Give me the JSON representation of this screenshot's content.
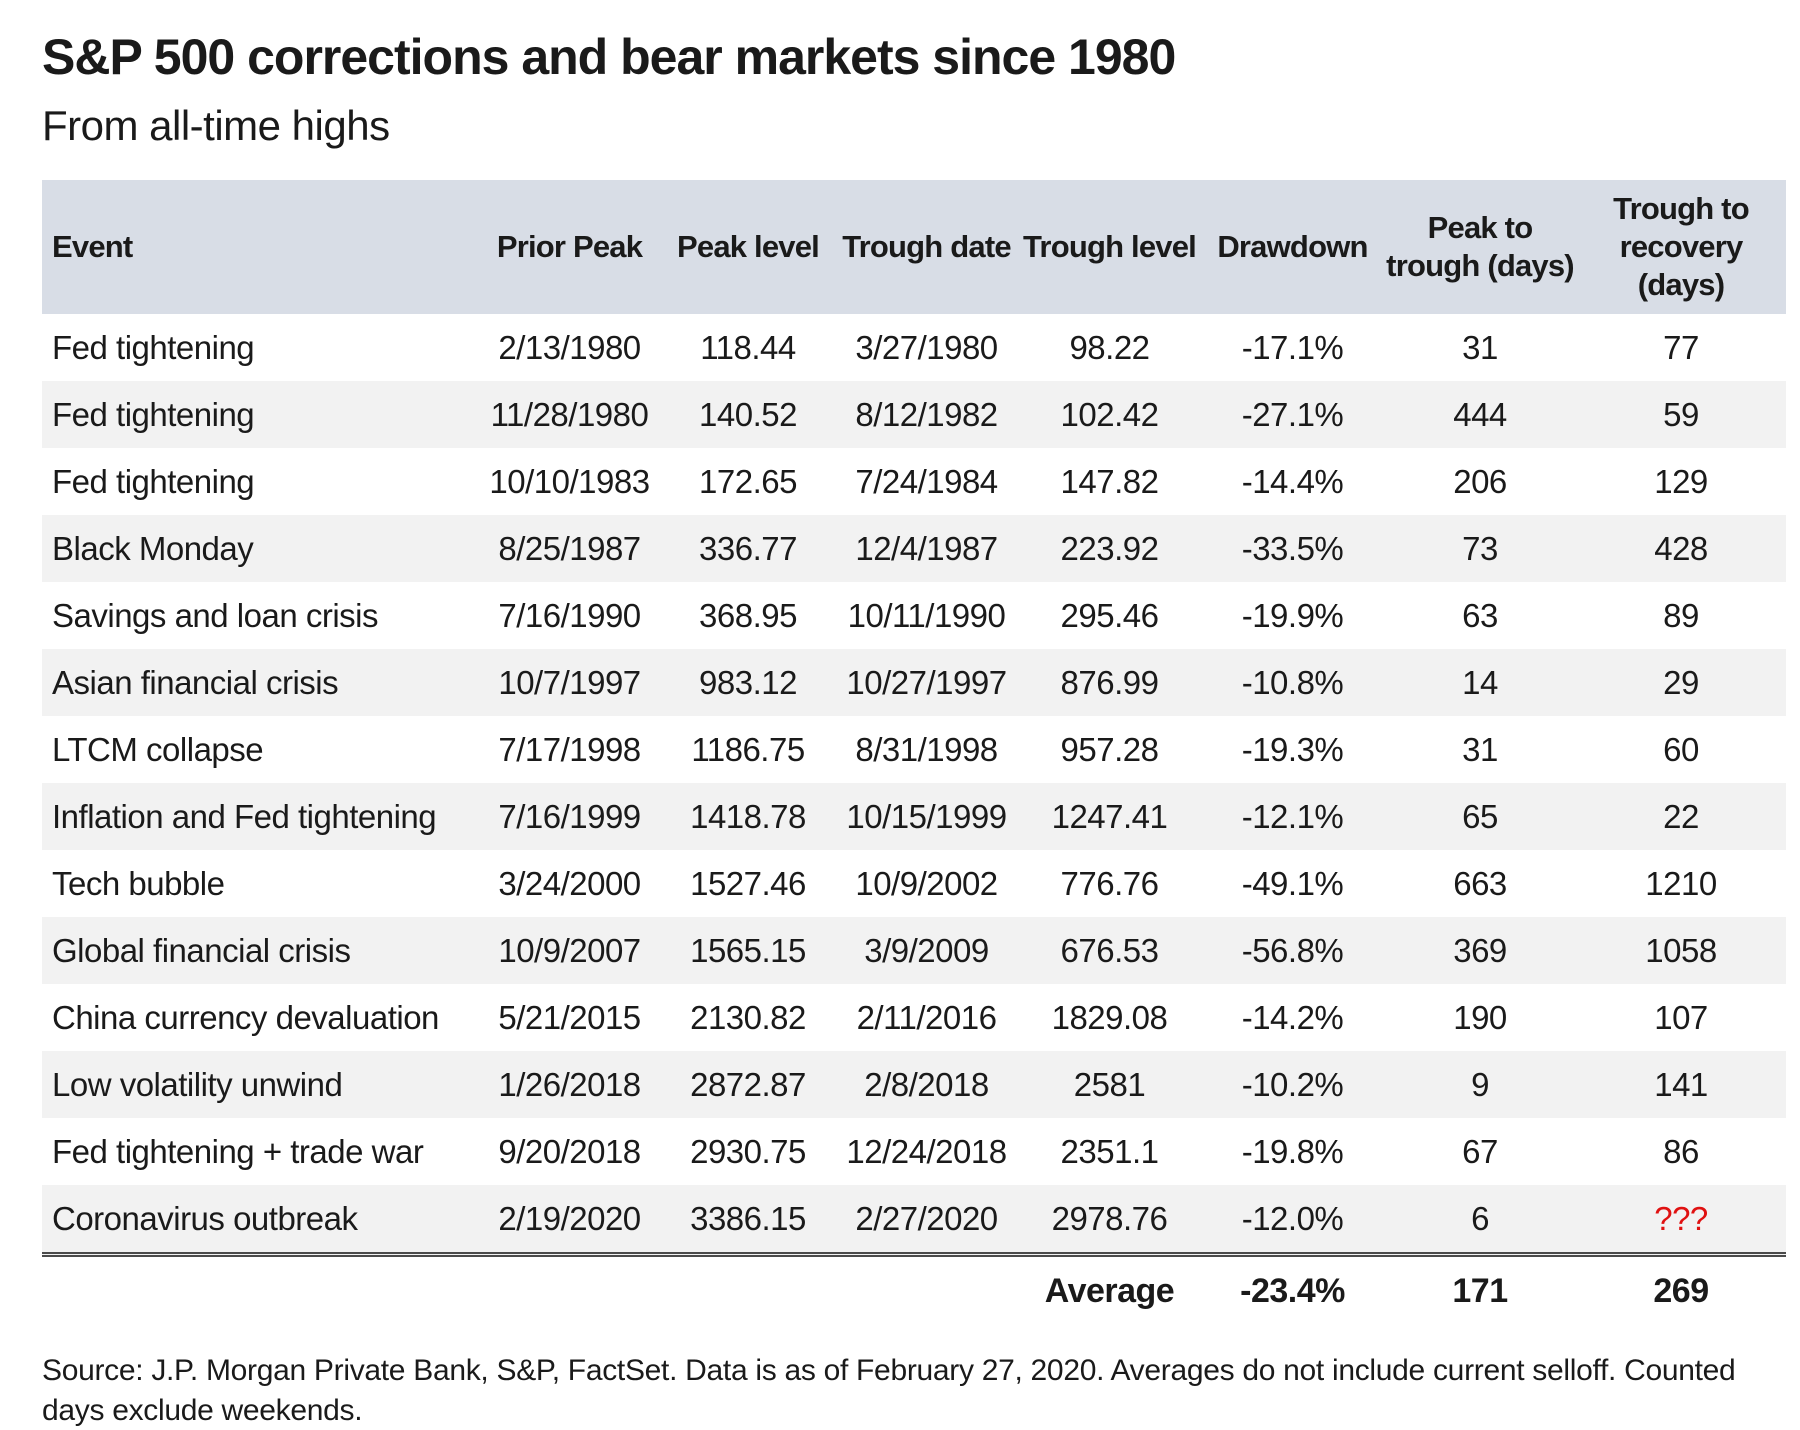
{
  "header": {
    "title": "S&P 500 corrections and bear markets since 1980",
    "subtitle": "From all-time highs"
  },
  "table": {
    "columns": [
      "Event",
      "Prior Peak",
      "Peak level",
      "Trough date",
      "Trough level",
      "Drawdown",
      "Peak to trough (days)",
      "Trough to recovery (days)"
    ],
    "rows": [
      [
        "Fed tightening",
        "2/13/1980",
        "118.44",
        "3/27/1980",
        "98.22",
        "-17.1%",
        "31",
        "77"
      ],
      [
        "Fed tightening",
        "11/28/1980",
        "140.52",
        "8/12/1982",
        "102.42",
        "-27.1%",
        "444",
        "59"
      ],
      [
        "Fed tightening",
        "10/10/1983",
        "172.65",
        "7/24/1984",
        "147.82",
        "-14.4%",
        "206",
        "129"
      ],
      [
        "Black Monday",
        "8/25/1987",
        "336.77",
        "12/4/1987",
        "223.92",
        "-33.5%",
        "73",
        "428"
      ],
      [
        "Savings and loan crisis",
        "7/16/1990",
        "368.95",
        "10/11/1990",
        "295.46",
        "-19.9%",
        "63",
        "89"
      ],
      [
        "Asian financial crisis",
        "10/7/1997",
        "983.12",
        "10/27/1997",
        "876.99",
        "-10.8%",
        "14",
        "29"
      ],
      [
        "LTCM collapse",
        "7/17/1998",
        "1186.75",
        "8/31/1998",
        "957.28",
        "-19.3%",
        "31",
        "60"
      ],
      [
        "Inflation and Fed tightening",
        "7/16/1999",
        "1418.78",
        "10/15/1999",
        "1247.41",
        "-12.1%",
        "65",
        "22"
      ],
      [
        "Tech bubble",
        "3/24/2000",
        "1527.46",
        "10/9/2002",
        "776.76",
        "-49.1%",
        "663",
        "1210"
      ],
      [
        "Global financial crisis",
        "10/9/2007",
        "1565.15",
        "3/9/2009",
        "676.53",
        "-56.8%",
        "369",
        "1058"
      ],
      [
        "China currency devaluation",
        "5/21/2015",
        "2130.82",
        "2/11/2016",
        "1829.08",
        "-14.2%",
        "190",
        "107"
      ],
      [
        "Low volatility unwind",
        "1/26/2018",
        "2872.87",
        "2/8/2018",
        "2581",
        "-10.2%",
        "9",
        "141"
      ],
      [
        "Fed tightening + trade war",
        "9/20/2018",
        "2930.75",
        "12/24/2018",
        "2351.1",
        "-19.8%",
        "67",
        "86"
      ],
      [
        "Coronavirus outbreak",
        "2/19/2020",
        "3386.15",
        "2/27/2020",
        "2978.76",
        "-12.0%",
        "6",
        "???"
      ]
    ],
    "average_row": [
      "",
      "",
      "",
      "",
      "Average",
      "-23.4%",
      "171",
      "269"
    ],
    "pending_marker": "???"
  },
  "footer": {
    "source": "Source: J.P. Morgan Private Bank, S&P, FactSet. Data is as of February 27, 2020. Averages do not include current selloff. Counted days exclude weekends."
  },
  "colors": {
    "header_bg": "#d8dde6",
    "stripe": "#f2f2f2",
    "pending_red": "#e01111",
    "rule": "#4a4a4a",
    "text": "#1a1a1a"
  },
  "chart_data": {
    "type": "table",
    "title": "S&P 500 corrections and bear markets since 1980",
    "subtitle": "From all-time highs",
    "columns": [
      "Event",
      "Prior Peak",
      "Peak level",
      "Trough date",
      "Trough level",
      "Drawdown",
      "Peak to trough (days)",
      "Trough to recovery (days)"
    ],
    "rows": [
      {
        "event": "Fed tightening",
        "prior_peak": "2/13/1980",
        "peak_level": 118.44,
        "trough_date": "3/27/1980",
        "trough_level": 98.22,
        "drawdown_pct": -17.1,
        "peak_to_trough_days": 31,
        "trough_to_recovery_days": 77
      },
      {
        "event": "Fed tightening",
        "prior_peak": "11/28/1980",
        "peak_level": 140.52,
        "trough_date": "8/12/1982",
        "trough_level": 102.42,
        "drawdown_pct": -27.1,
        "peak_to_trough_days": 444,
        "trough_to_recovery_days": 59
      },
      {
        "event": "Fed tightening",
        "prior_peak": "10/10/1983",
        "peak_level": 172.65,
        "trough_date": "7/24/1984",
        "trough_level": 147.82,
        "drawdown_pct": -14.4,
        "peak_to_trough_days": 206,
        "trough_to_recovery_days": 129
      },
      {
        "event": "Black Monday",
        "prior_peak": "8/25/1987",
        "peak_level": 336.77,
        "trough_date": "12/4/1987",
        "trough_level": 223.92,
        "drawdown_pct": -33.5,
        "peak_to_trough_days": 73,
        "trough_to_recovery_days": 428
      },
      {
        "event": "Savings and loan crisis",
        "prior_peak": "7/16/1990",
        "peak_level": 368.95,
        "trough_date": "10/11/1990",
        "trough_level": 295.46,
        "drawdown_pct": -19.9,
        "peak_to_trough_days": 63,
        "trough_to_recovery_days": 89
      },
      {
        "event": "Asian financial crisis",
        "prior_peak": "10/7/1997",
        "peak_level": 983.12,
        "trough_date": "10/27/1997",
        "trough_level": 876.99,
        "drawdown_pct": -10.8,
        "peak_to_trough_days": 14,
        "trough_to_recovery_days": 29
      },
      {
        "event": "LTCM collapse",
        "prior_peak": "7/17/1998",
        "peak_level": 1186.75,
        "trough_date": "8/31/1998",
        "trough_level": 957.28,
        "drawdown_pct": -19.3,
        "peak_to_trough_days": 31,
        "trough_to_recovery_days": 60
      },
      {
        "event": "Inflation and Fed tightening",
        "prior_peak": "7/16/1999",
        "peak_level": 1418.78,
        "trough_date": "10/15/1999",
        "trough_level": 1247.41,
        "drawdown_pct": -12.1,
        "peak_to_trough_days": 65,
        "trough_to_recovery_days": 22
      },
      {
        "event": "Tech bubble",
        "prior_peak": "3/24/2000",
        "peak_level": 1527.46,
        "trough_date": "10/9/2002",
        "trough_level": 776.76,
        "drawdown_pct": -49.1,
        "peak_to_trough_days": 663,
        "trough_to_recovery_days": 1210
      },
      {
        "event": "Global financial crisis",
        "prior_peak": "10/9/2007",
        "peak_level": 1565.15,
        "trough_date": "3/9/2009",
        "trough_level": 676.53,
        "drawdown_pct": -56.8,
        "peak_to_trough_days": 369,
        "trough_to_recovery_days": 1058
      },
      {
        "event": "China currency devaluation",
        "prior_peak": "5/21/2015",
        "peak_level": 2130.82,
        "trough_date": "2/11/2016",
        "trough_level": 1829.08,
        "drawdown_pct": -14.2,
        "peak_to_trough_days": 190,
        "trough_to_recovery_days": 107
      },
      {
        "event": "Low volatility unwind",
        "prior_peak": "1/26/2018",
        "peak_level": 2872.87,
        "trough_date": "2/8/2018",
        "trough_level": 2581,
        "drawdown_pct": -10.2,
        "peak_to_trough_days": 9,
        "trough_to_recovery_days": 141
      },
      {
        "event": "Fed tightening + trade war",
        "prior_peak": "9/20/2018",
        "peak_level": 2930.75,
        "trough_date": "12/24/2018",
        "trough_level": 2351.1,
        "drawdown_pct": -19.8,
        "peak_to_trough_days": 67,
        "trough_to_recovery_days": 86
      },
      {
        "event": "Coronavirus outbreak",
        "prior_peak": "2/19/2020",
        "peak_level": 3386.15,
        "trough_date": "2/27/2020",
        "trough_level": 2978.76,
        "drawdown_pct": -12.0,
        "peak_to_trough_days": 6,
        "trough_to_recovery_days": null
      }
    ],
    "average": {
      "label": "Average",
      "drawdown_pct": -23.4,
      "peak_to_trough_days": 171,
      "trough_to_recovery_days": 269
    },
    "layout_hints": {
      "striped_rows": true,
      "header_background": "#d8dde6",
      "pending_value_color": "#e01111"
    }
  }
}
